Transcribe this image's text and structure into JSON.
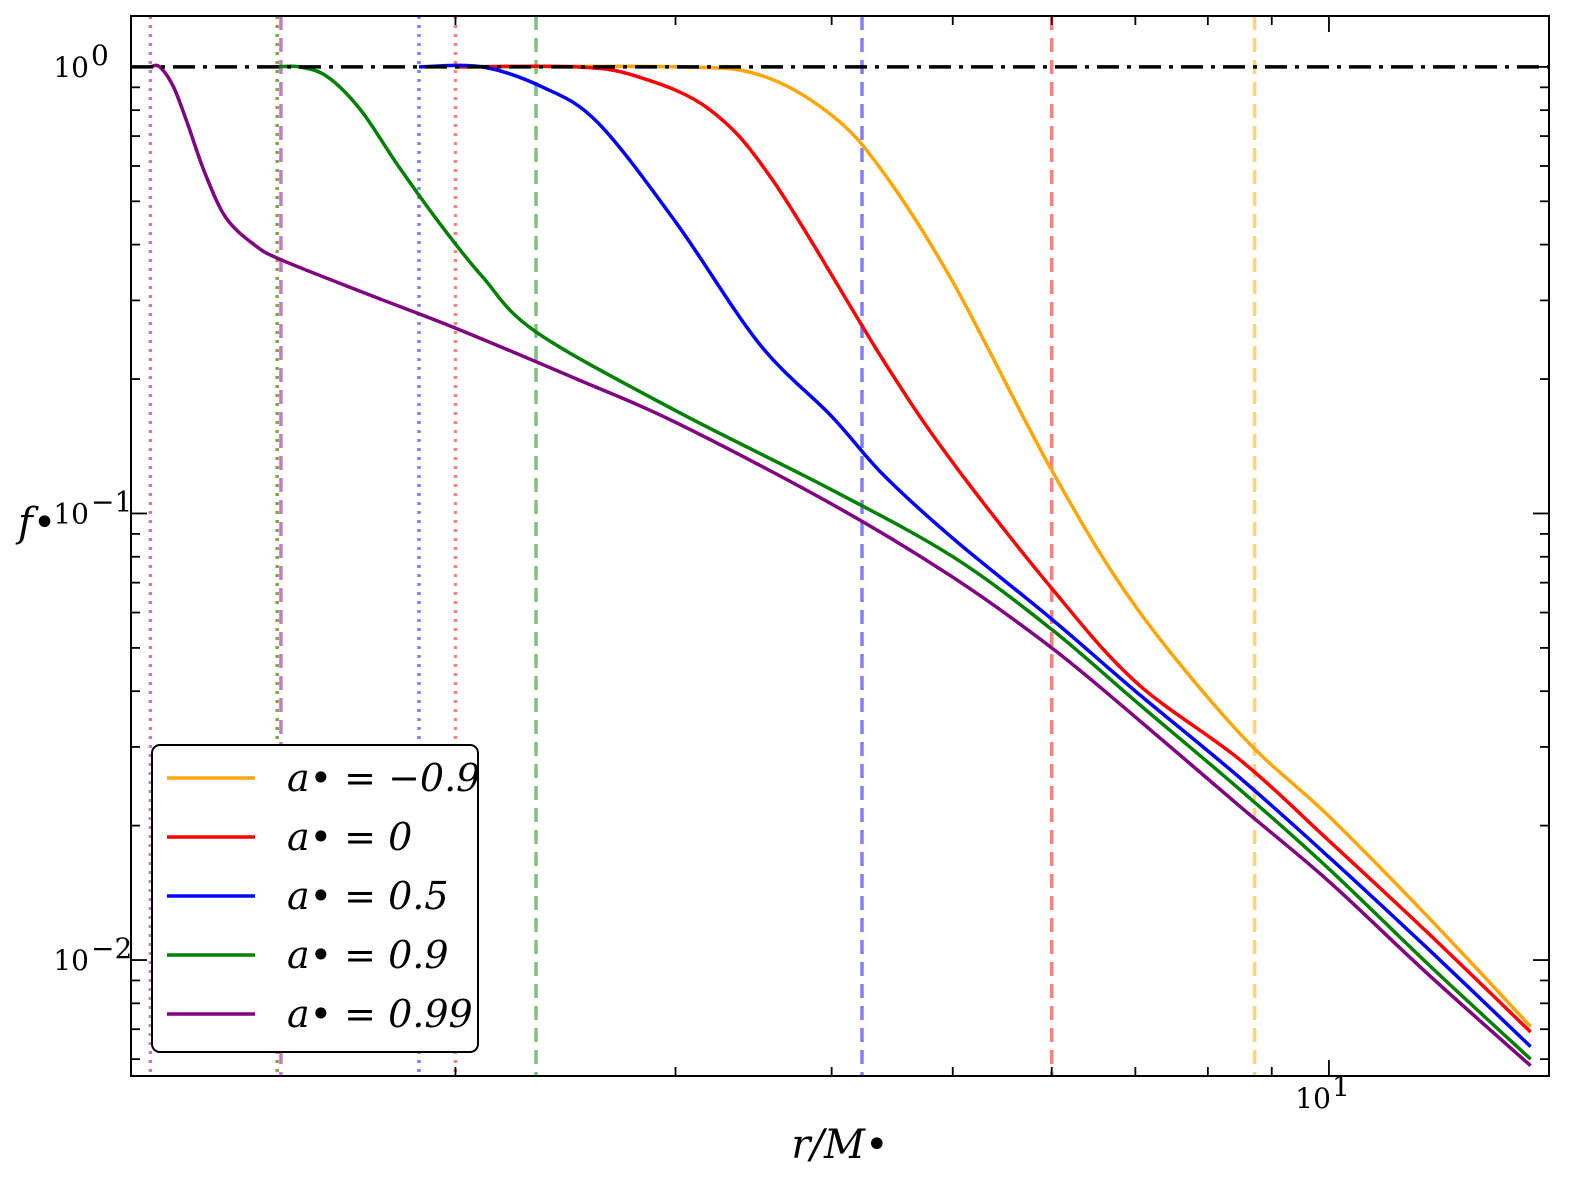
{
  "chart_data": {
    "type": "line",
    "title": "",
    "xlabel": "r/M•",
    "ylabel": "f•",
    "xscale": "log",
    "yscale": "log",
    "xlim": [
      1.1,
      15.0
    ],
    "ylim": [
      0.0055,
      1.3
    ],
    "x_tick_labels": [
      {
        "value": 10,
        "label": "10",
        "exp": "1"
      }
    ],
    "y_tick_labels": [
      {
        "value": 1,
        "label": "10",
        "exp": "0"
      },
      {
        "value": 0.1,
        "label": "10",
        "exp": "−1"
      },
      {
        "value": 0.01,
        "label": "10",
        "exp": "−2"
      }
    ],
    "reference_line": {
      "y": 1.0,
      "style": "dash-dot",
      "color": "#000000"
    },
    "legend_position": "lower-left",
    "series": [
      {
        "name": "a• = −0.9",
        "spin": "−0.9",
        "color": "#FFA500",
        "points": [
          [
            2.0,
            1.0
          ],
          [
            3.0,
            1.0
          ],
          [
            3.5,
            0.96
          ],
          [
            4.0,
            0.78
          ],
          [
            4.4,
            0.58
          ],
          [
            5.0,
            0.33
          ],
          [
            6.0,
            0.125
          ],
          [
            7.0,
            0.062
          ],
          [
            8.5,
            0.032
          ],
          [
            10,
            0.021
          ],
          [
            12,
            0.0125
          ],
          [
            14.5,
            0.0071
          ]
        ],
        "isco": 8.72,
        "horizon": 1.44
      },
      {
        "name": "a• = 0",
        "spin": "0",
        "color": "#FF0000",
        "points": [
          [
            2.0,
            1.0
          ],
          [
            2.5,
            1.0
          ],
          [
            2.8,
            0.95
          ],
          [
            3.2,
            0.8
          ],
          [
            3.6,
            0.55
          ],
          [
            4.4,
            0.22
          ],
          [
            5.0,
            0.13
          ],
          [
            6.0,
            0.068
          ],
          [
            7.0,
            0.042
          ],
          [
            8.5,
            0.028
          ],
          [
            10,
            0.0185
          ],
          [
            12,
            0.0115
          ],
          [
            14.5,
            0.0069
          ]
        ],
        "isco": 6.0,
        "horizon": 2.0
      },
      {
        "name": "a• = 0.5",
        "spin": "0.5",
        "color": "#0000FF",
        "points": [
          [
            1.87,
            1.0
          ],
          [
            2.1,
            1.0
          ],
          [
            2.35,
            0.9
          ],
          [
            2.6,
            0.75
          ],
          [
            3.0,
            0.45
          ],
          [
            3.5,
            0.24
          ],
          [
            4.0,
            0.165
          ],
          [
            4.4,
            0.122
          ],
          [
            5.0,
            0.088
          ],
          [
            6.0,
            0.058
          ],
          [
            7.0,
            0.04
          ],
          [
            8.5,
            0.0255
          ],
          [
            10,
            0.017
          ],
          [
            12,
            0.0106
          ],
          [
            14.5,
            0.0064
          ]
        ],
        "isco": 4.23,
        "horizon": 1.87
      },
      {
        "name": "a• = 0.9",
        "spin": "0.9",
        "color": "#008000",
        "points": [
          [
            1.44,
            1.0
          ],
          [
            1.5,
            1.0
          ],
          [
            1.58,
            0.95
          ],
          [
            1.68,
            0.8
          ],
          [
            1.8,
            0.6
          ],
          [
            1.95,
            0.44
          ],
          [
            2.1,
            0.34
          ],
          [
            2.32,
            0.255
          ],
          [
            3.0,
            0.17
          ],
          [
            4.0,
            0.113
          ],
          [
            5.0,
            0.08
          ],
          [
            6.0,
            0.055
          ],
          [
            7.0,
            0.038
          ],
          [
            8.5,
            0.024
          ],
          [
            10,
            0.016
          ],
          [
            12,
            0.0098
          ],
          [
            14.5,
            0.006
          ]
        ],
        "isco": 2.32,
        "horizon": 1.44
      },
      {
        "name": "a• = 0.99",
        "spin": "0.99",
        "color": "#800080",
        "points": [
          [
            1.14,
            1.0
          ],
          [
            1.16,
            1.0
          ],
          [
            1.19,
            0.9
          ],
          [
            1.22,
            0.75
          ],
          [
            1.26,
            0.58
          ],
          [
            1.31,
            0.46
          ],
          [
            1.38,
            0.4
          ],
          [
            1.45,
            0.37
          ],
          [
            1.7,
            0.31
          ],
          [
            2.0,
            0.26
          ],
          [
            2.5,
            0.2
          ],
          [
            3.0,
            0.16
          ],
          [
            4.0,
            0.105
          ],
          [
            5.0,
            0.072
          ],
          [
            6.0,
            0.05
          ],
          [
            7.0,
            0.035
          ],
          [
            8.5,
            0.022
          ],
          [
            10,
            0.015
          ],
          [
            12,
            0.0093
          ],
          [
            14.5,
            0.0058
          ]
        ],
        "isco": 1.45,
        "horizon": 1.14
      }
    ]
  }
}
